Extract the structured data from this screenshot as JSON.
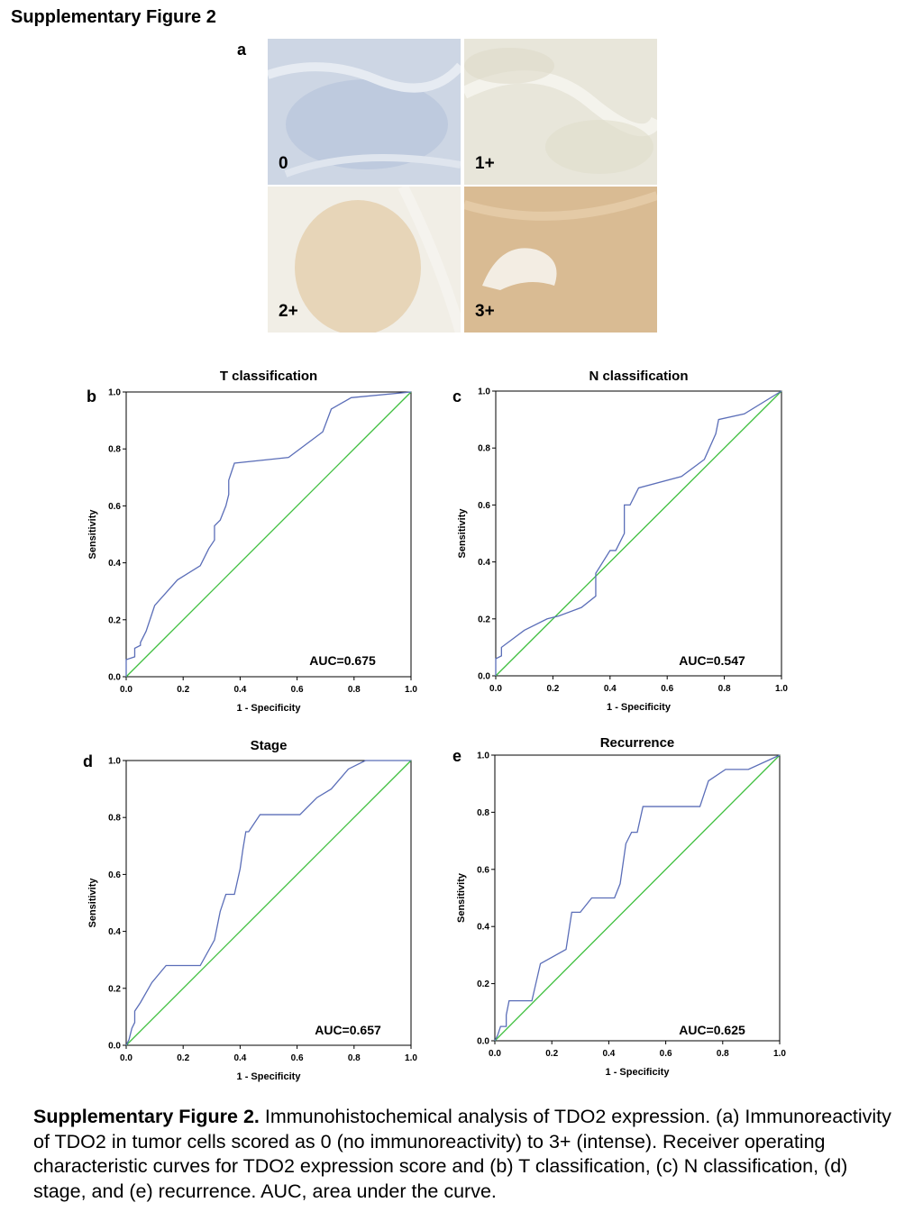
{
  "figure_title": "Supplementary Figure 2",
  "panel_a": {
    "letter": "a",
    "scores": [
      "0",
      "1+",
      "2+",
      "3+"
    ]
  },
  "chart_data": [
    {
      "type": "line",
      "panel": "b",
      "title": "T classification",
      "xlabel": "1 - Specificity",
      "ylabel": "Sensitivity",
      "xlim": [
        0,
        1
      ],
      "ylim": [
        0,
        1
      ],
      "xticks": [
        "0.0",
        "0.2",
        "0.4",
        "0.6",
        "0.8",
        "1.0"
      ],
      "yticks": [
        "0.0",
        "0.2",
        "0.4",
        "0.6",
        "0.8",
        "1.0"
      ],
      "annotation": "AUC=0.675",
      "roc": [
        [
          0,
          0
        ],
        [
          0,
          0.06
        ],
        [
          0.03,
          0.07
        ],
        [
          0.03,
          0.1
        ],
        [
          0.05,
          0.11
        ],
        [
          0.05,
          0.12
        ],
        [
          0.07,
          0.16
        ],
        [
          0.1,
          0.25
        ],
        [
          0.18,
          0.34
        ],
        [
          0.26,
          0.39
        ],
        [
          0.29,
          0.45
        ],
        [
          0.31,
          0.48
        ],
        [
          0.31,
          0.53
        ],
        [
          0.33,
          0.55
        ],
        [
          0.35,
          0.6
        ],
        [
          0.36,
          0.64
        ],
        [
          0.36,
          0.69
        ],
        [
          0.38,
          0.75
        ],
        [
          0.57,
          0.77
        ],
        [
          0.69,
          0.86
        ],
        [
          0.72,
          0.94
        ],
        [
          0.79,
          0.98
        ],
        [
          1,
          1
        ]
      ],
      "reference": [
        [
          0,
          0
        ],
        [
          1,
          1
        ]
      ]
    },
    {
      "type": "line",
      "panel": "c",
      "title": "N classification",
      "xlabel": "1 - Specificity",
      "ylabel": "Sensitivity",
      "xlim": [
        0,
        1
      ],
      "ylim": [
        0,
        1
      ],
      "xticks": [
        "0.0",
        "0.2",
        "0.4",
        "0.6",
        "0.8",
        "1.0"
      ],
      "yticks": [
        "0.0",
        "0.2",
        "0.4",
        "0.6",
        "0.8",
        "1.0"
      ],
      "annotation": "AUC=0.547",
      "roc": [
        [
          0,
          0
        ],
        [
          0,
          0.06
        ],
        [
          0.02,
          0.07
        ],
        [
          0.02,
          0.1
        ],
        [
          0.1,
          0.16
        ],
        [
          0.18,
          0.2
        ],
        [
          0.22,
          0.21
        ],
        [
          0.3,
          0.24
        ],
        [
          0.35,
          0.28
        ],
        [
          0.35,
          0.36
        ],
        [
          0.4,
          0.44
        ],
        [
          0.42,
          0.44
        ],
        [
          0.45,
          0.5
        ],
        [
          0.45,
          0.6
        ],
        [
          0.47,
          0.6
        ],
        [
          0.5,
          0.66
        ],
        [
          0.65,
          0.7
        ],
        [
          0.73,
          0.76
        ],
        [
          0.77,
          0.85
        ],
        [
          0.78,
          0.9
        ],
        [
          0.87,
          0.92
        ],
        [
          1,
          1
        ]
      ],
      "reference": [
        [
          0,
          0
        ],
        [
          1,
          1
        ]
      ]
    },
    {
      "type": "line",
      "panel": "d",
      "title": "Stage",
      "xlabel": "1 - Specificity",
      "ylabel": "Sensitivity",
      "xlim": [
        0,
        1
      ],
      "ylim": [
        0,
        1
      ],
      "xticks": [
        "0.0",
        "0.2",
        "0.4",
        "0.6",
        "0.8",
        "1.0"
      ],
      "yticks": [
        "0.0",
        "0.2",
        "0.4",
        "0.6",
        "0.8",
        "1.0"
      ],
      "annotation": "AUC=0.657",
      "roc": [
        [
          0,
          0
        ],
        [
          0.01,
          0.02
        ],
        [
          0.02,
          0.06
        ],
        [
          0.03,
          0.08
        ],
        [
          0.03,
          0.12
        ],
        [
          0.05,
          0.15
        ],
        [
          0.09,
          0.22
        ],
        [
          0.14,
          0.28
        ],
        [
          0.26,
          0.28
        ],
        [
          0.31,
          0.37
        ],
        [
          0.33,
          0.47
        ],
        [
          0.35,
          0.53
        ],
        [
          0.38,
          0.53
        ],
        [
          0.4,
          0.62
        ],
        [
          0.41,
          0.69
        ],
        [
          0.42,
          0.75
        ],
        [
          0.43,
          0.75
        ],
        [
          0.47,
          0.81
        ],
        [
          0.61,
          0.81
        ],
        [
          0.67,
          0.87
        ],
        [
          0.72,
          0.9
        ],
        [
          0.78,
          0.97
        ],
        [
          0.84,
          1
        ],
        [
          1,
          1
        ]
      ],
      "reference": [
        [
          0,
          0
        ],
        [
          1,
          1
        ]
      ]
    },
    {
      "type": "line",
      "panel": "e",
      "title": "Recurrence",
      "xlabel": "1 - Specificity",
      "ylabel": "Sensitivity",
      "xlim": [
        0,
        1
      ],
      "ylim": [
        0,
        1
      ],
      "xticks": [
        "0.0",
        "0.2",
        "0.4",
        "0.6",
        "0.8",
        "1.0"
      ],
      "yticks": [
        "0.0",
        "0.2",
        "0.4",
        "0.6",
        "0.8",
        "1.0"
      ],
      "annotation": "AUC=0.625",
      "roc": [
        [
          0,
          0
        ],
        [
          0.01,
          0.02
        ],
        [
          0.02,
          0.05
        ],
        [
          0.04,
          0.05
        ],
        [
          0.04,
          0.09
        ],
        [
          0.05,
          0.14
        ],
        [
          0.13,
          0.14
        ],
        [
          0.16,
          0.27
        ],
        [
          0.25,
          0.32
        ],
        [
          0.27,
          0.45
        ],
        [
          0.3,
          0.45
        ],
        [
          0.34,
          0.5
        ],
        [
          0.42,
          0.5
        ],
        [
          0.44,
          0.55
        ],
        [
          0.46,
          0.69
        ],
        [
          0.48,
          0.73
        ],
        [
          0.5,
          0.73
        ],
        [
          0.52,
          0.82
        ],
        [
          0.72,
          0.82
        ],
        [
          0.75,
          0.91
        ],
        [
          0.81,
          0.95
        ],
        [
          0.89,
          0.95
        ],
        [
          1,
          1
        ]
      ],
      "reference": [
        [
          0,
          0
        ],
        [
          1,
          1
        ]
      ]
    }
  ],
  "caption": {
    "lead": "Supplementary Figure 2.",
    "text": " Immunohistochemical analysis of TDO2 expression. (a) Immunoreactivity of TDO2 in tumor cells scored as 0 (no immunoreactivity) to 3+ (intense). Receiver operating characteristic curves for TDO2 expression score and (b) T classification, (c) N classification, (d) stage, and (e) recurrence. AUC, area under the curve."
  },
  "colors": {
    "roc_line": "#5b6eb8",
    "reference_line": "#3fbf3f",
    "axis": "#000000",
    "stain_0": "#cdd6e4",
    "stain_1": "#e8e6da",
    "stain_2": "#ece4d4",
    "stain_3": "#e0c8a8"
  }
}
